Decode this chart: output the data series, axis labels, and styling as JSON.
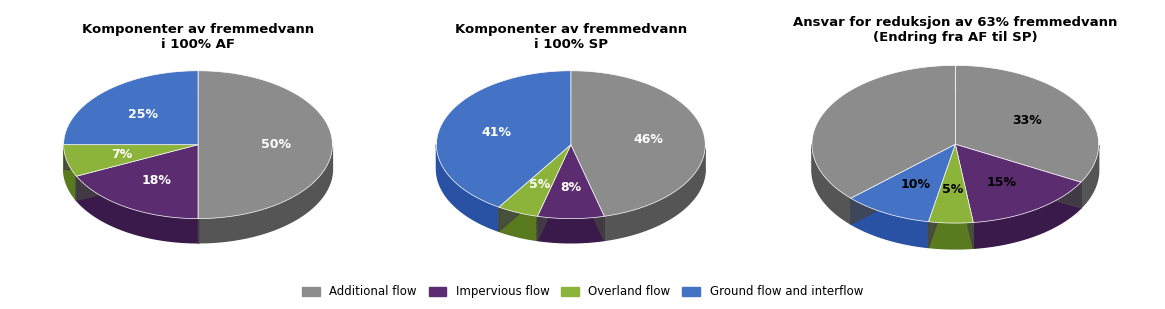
{
  "charts": [
    {
      "title": "Komponenter av fremmedvann\ni 100% AF",
      "values": [
        50,
        18,
        7,
        25
      ],
      "labels": [
        "50%",
        "18%",
        "7%",
        "25%"
      ],
      "label_colors": [
        "white",
        "white",
        "white",
        "white"
      ],
      "colors": [
        "#8C8C8C",
        "#5B2C6F",
        "#8DB43A",
        "#4472C4"
      ],
      "dark_colors": [
        "#555555",
        "#3A1A4A",
        "#5A7A20",
        "#2A52A4"
      ],
      "startangle": 90,
      "counterclock": false
    },
    {
      "title": "Komponenter av fremmedvann\ni 100% SP",
      "values": [
        46,
        8,
        5,
        41
      ],
      "labels": [
        "46%",
        "8%",
        "5%",
        "41%"
      ],
      "label_colors": [
        "white",
        "white",
        "white",
        "white"
      ],
      "colors": [
        "#8C8C8C",
        "#5B2C6F",
        "#8DB43A",
        "#4472C4"
      ],
      "dark_colors": [
        "#555555",
        "#3A1A4A",
        "#5A7A20",
        "#2A52A4"
      ],
      "startangle": 90,
      "counterclock": false
    },
    {
      "title": "Ansvar for reduksjon av 63% fremmedvann\n(Endring fra AF til SP)",
      "values": [
        33,
        15,
        5,
        10,
        37
      ],
      "labels": [
        "33%",
        "15%",
        "5%",
        "10%",
        ""
      ],
      "label_colors": [
        "black",
        "black",
        "black",
        "black",
        ""
      ],
      "colors": [
        "#8C8C8C",
        "#5B2C6F",
        "#8DB43A",
        "#4472C4",
        "#8C8C8C"
      ],
      "dark_colors": [
        "#555555",
        "#3A1A4A",
        "#5A7A20",
        "#2A52A4",
        "#555555"
      ],
      "startangle": 90,
      "counterclock": false
    }
  ],
  "legend_labels": [
    "Additional flow",
    "Impervious flow",
    "Overland flow",
    "Ground flow and interflow"
  ],
  "legend_colors": [
    "#8C8C8C",
    "#5B2C6F",
    "#8DB43A",
    "#4472C4"
  ],
  "bg_color": "#FFFFFF",
  "title_fontsize": 9.5,
  "label_fontsize": 9
}
